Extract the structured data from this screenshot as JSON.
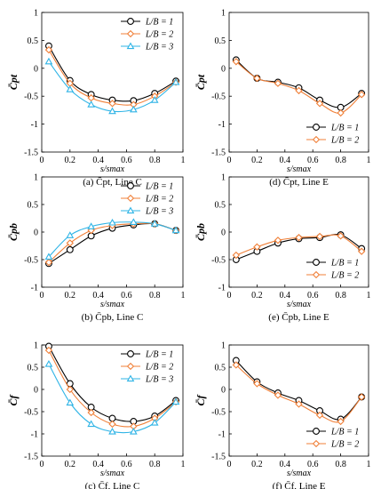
{
  "chart_data": [
    {
      "panel": "a",
      "type": "line",
      "caption": "(a) C̄pt, Line C",
      "ylabel": "C̄pt",
      "xlabel": "s/smax",
      "xlim": [
        0,
        1
      ],
      "ylim": [
        -1.5,
        1
      ],
      "xticks": [
        "0",
        "0.2",
        "0.4",
        "0.6",
        "0.8",
        "1"
      ],
      "yticks": [
        "1",
        "0.5",
        "0",
        "-0.5",
        "-1",
        "-1.5"
      ],
      "grid": false,
      "legend_position": "top-right",
      "x": [
        0.05,
        0.2,
        0.35,
        0.5,
        0.65,
        0.8,
        0.95
      ],
      "series": [
        {
          "name": "L/B = 1",
          "marker": "circle",
          "color": "#000000",
          "values": [
            0.4,
            -0.22,
            -0.47,
            -0.57,
            -0.58,
            -0.45,
            -0.23
          ]
        },
        {
          "name": "L/B = 2",
          "marker": "diamond",
          "color": "#f07f37",
          "values": [
            0.33,
            -0.27,
            -0.53,
            -0.63,
            -0.65,
            -0.5,
            -0.25
          ]
        },
        {
          "name": "L/B = 3",
          "marker": "triangle",
          "color": "#2fb4e6",
          "values": [
            0.12,
            -0.38,
            -0.65,
            -0.77,
            -0.74,
            -0.57,
            -0.25
          ]
        }
      ]
    },
    {
      "panel": "d",
      "type": "line",
      "caption": "(d) C̄pt, Line E",
      "ylabel": "C̄pt",
      "xlabel": "s/smax",
      "xlim": [
        0,
        1
      ],
      "ylim": [
        -1.5,
        1
      ],
      "xticks": [
        "0",
        "0.2",
        "0.4",
        "0.6",
        "0.8",
        "1"
      ],
      "yticks": [
        "1",
        "0.5",
        "0",
        "-0.5",
        "-1",
        "-1.5"
      ],
      "grid": false,
      "legend_position": "bottom-right",
      "x": [
        0.05,
        0.2,
        0.35,
        0.5,
        0.65,
        0.8,
        0.95
      ],
      "series": [
        {
          "name": "L/B = 1",
          "marker": "circle",
          "color": "#000000",
          "values": [
            0.15,
            -0.18,
            -0.25,
            -0.35,
            -0.57,
            -0.7,
            -0.45
          ]
        },
        {
          "name": "L/B = 2",
          "marker": "diamond",
          "color": "#f07f37",
          "values": [
            0.12,
            -0.18,
            -0.27,
            -0.4,
            -0.63,
            -0.8,
            -0.47
          ]
        }
      ]
    },
    {
      "panel": "b",
      "type": "line",
      "caption": "(b) C̄pb, Line C",
      "ylabel": "C̄pb",
      "xlabel": "s/smax",
      "xlim": [
        0,
        1
      ],
      "ylim": [
        -1,
        1
      ],
      "xticks": [
        "0",
        "0.2",
        "0.4",
        "0.6",
        "0.8",
        "1"
      ],
      "yticks": [
        "1",
        "0.5",
        "0",
        "-0.5",
        "-1"
      ],
      "grid": false,
      "legend_position": "top-right",
      "x": [
        0.05,
        0.2,
        0.35,
        0.5,
        0.65,
        0.8,
        0.95
      ],
      "series": [
        {
          "name": "L/B = 1",
          "marker": "circle",
          "color": "#000000",
          "values": [
            -0.57,
            -0.32,
            -0.07,
            0.07,
            0.13,
            0.15,
            0.03
          ]
        },
        {
          "name": "L/B = 2",
          "marker": "diamond",
          "color": "#f07f37",
          "values": [
            -0.55,
            -0.2,
            0.03,
            0.12,
            0.15,
            0.15,
            0.03
          ]
        },
        {
          "name": "L/B = 3",
          "marker": "triangle",
          "color": "#2fb4e6",
          "values": [
            -0.45,
            -0.06,
            0.1,
            0.17,
            0.18,
            0.15,
            0.03
          ]
        }
      ]
    },
    {
      "panel": "e",
      "type": "line",
      "caption": "(e) C̄pb, Line E",
      "ylabel": "C̄pb",
      "xlabel": "s/smax",
      "xlim": [
        0,
        1
      ],
      "ylim": [
        -1,
        1
      ],
      "xticks": [
        "0",
        "0.2",
        "0.4",
        "0.6",
        "0.8",
        "1"
      ],
      "yticks": [
        "1",
        "0.5",
        "0",
        "-0.5",
        "-1"
      ],
      "grid": false,
      "legend_position": "bottom-right",
      "x": [
        0.05,
        0.2,
        0.35,
        0.5,
        0.65,
        0.8,
        0.95
      ],
      "series": [
        {
          "name": "L/B = 1",
          "marker": "circle",
          "color": "#000000",
          "values": [
            -0.5,
            -0.35,
            -0.2,
            -0.12,
            -0.1,
            -0.05,
            -0.3
          ]
        },
        {
          "name": "L/B = 2",
          "marker": "diamond",
          "color": "#f07f37",
          "values": [
            -0.42,
            -0.27,
            -0.15,
            -0.1,
            -0.08,
            -0.07,
            -0.35
          ]
        }
      ]
    },
    {
      "panel": "c",
      "type": "line",
      "caption": "(c) C̄f, Line C",
      "ylabel": "C̄f",
      "xlabel": "s/smax",
      "xlim": [
        0,
        1
      ],
      "ylim": [
        -1.5,
        1
      ],
      "xticks": [
        "0",
        "0.2",
        "0.4",
        "0.6",
        "0.8",
        "1"
      ],
      "yticks": [
        "1",
        "0.5",
        "0",
        "-0.5",
        "-1",
        "-1.5"
      ],
      "grid": false,
      "legend_position": "top-right",
      "x": [
        0.05,
        0.2,
        0.35,
        0.5,
        0.65,
        0.8,
        0.95
      ],
      "series": [
        {
          "name": "L/B = 1",
          "marker": "circle",
          "color": "#000000",
          "values": [
            0.97,
            0.13,
            -0.4,
            -0.65,
            -0.72,
            -0.6,
            -0.25
          ]
        },
        {
          "name": "L/B = 2",
          "marker": "diamond",
          "color": "#f07f37",
          "values": [
            0.88,
            0.0,
            -0.52,
            -0.78,
            -0.83,
            -0.65,
            -0.28
          ]
        },
        {
          "name": "L/B = 3",
          "marker": "triangle",
          "color": "#2fb4e6",
          "values": [
            0.57,
            -0.3,
            -0.78,
            -0.95,
            -0.95,
            -0.75,
            -0.28
          ]
        }
      ]
    },
    {
      "panel": "f",
      "type": "line",
      "caption": "(f) C̄f, Line E",
      "ylabel": "C̄f",
      "xlabel": "s/smax",
      "xlim": [
        0,
        1
      ],
      "ylim": [
        -1.5,
        1
      ],
      "xticks": [
        "0",
        "0.2",
        "0.4",
        "0.6",
        "0.8",
        "1"
      ],
      "yticks": [
        "1",
        "0.5",
        "0",
        "-0.5",
        "-1",
        "-1.5"
      ],
      "grid": false,
      "legend_position": "bottom-right",
      "x": [
        0.05,
        0.2,
        0.35,
        0.5,
        0.65,
        0.8,
        0.95
      ],
      "series": [
        {
          "name": "L/B = 1",
          "marker": "circle",
          "color": "#000000",
          "values": [
            0.65,
            0.17,
            -0.08,
            -0.25,
            -0.48,
            -0.67,
            -0.17
          ]
        },
        {
          "name": "L/B = 2",
          "marker": "diamond",
          "color": "#f07f37",
          "values": [
            0.55,
            0.13,
            -0.13,
            -0.33,
            -0.58,
            -0.72,
            -0.17
          ]
        }
      ]
    }
  ]
}
